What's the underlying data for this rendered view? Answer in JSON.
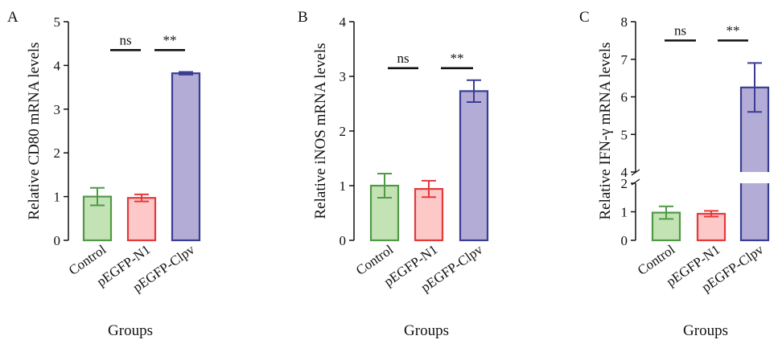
{
  "chart_data": [
    {
      "type": "bar",
      "panel": "A",
      "ylabel": "Relative CD80 mRNA levels",
      "xlabel": "Groups",
      "categories": [
        "Control",
        "pEGFP-N1",
        "pEGFP-Clpv"
      ],
      "values": [
        1.0,
        0.97,
        3.82
      ],
      "errors": [
        0.2,
        0.08,
        0.03
      ],
      "ylim": [
        0,
        5
      ],
      "yticks": [
        "0",
        "1",
        "2",
        "3",
        "4",
        "5"
      ],
      "significance": [
        {
          "label": "ns",
          "level": 4.35
        },
        {
          "label": "**",
          "level": 4.35
        }
      ]
    },
    {
      "type": "bar",
      "panel": "B",
      "ylabel": "Relative iNOS mRNA levels",
      "xlabel": "Groups",
      "categories": [
        "Control",
        "pEGFP-N1",
        "pEGFP-Clpv"
      ],
      "values": [
        1.0,
        0.94,
        2.73
      ],
      "errors": [
        0.22,
        0.15,
        0.2
      ],
      "ylim": [
        0,
        4
      ],
      "yticks": [
        "0",
        "1",
        "2",
        "3",
        "4"
      ],
      "significance": [
        {
          "label": "ns",
          "level": 3.15
        },
        {
          "label": "**",
          "level": 3.15
        }
      ]
    },
    {
      "type": "bar",
      "panel": "C",
      "ylabel": "Relative IFN-γ mRNA levels",
      "xlabel": "Groups",
      "categories": [
        "Control",
        "pEGFP-N1",
        "pEGFP-Clpv"
      ],
      "values": [
        0.97,
        0.93,
        6.25
      ],
      "errors": [
        0.22,
        0.1,
        0.65
      ],
      "axis_break": [
        2,
        4
      ],
      "ylim": [
        0,
        8
      ],
      "yticks": [
        "0",
        "1",
        "2",
        "4",
        "5",
        "6",
        "7",
        "8"
      ],
      "significance": [
        {
          "label": "ns",
          "level": 7.5
        },
        {
          "label": "**",
          "level": 7.5
        }
      ]
    }
  ],
  "colors": {
    "control": {
      "fill": "#c3e3b5",
      "stroke": "#4e9a45"
    },
    "n1": {
      "fill": "#fcc8c8",
      "stroke": "#e5393a"
    },
    "clpv": {
      "fill": "#b3acd6",
      "stroke": "#3a3d94"
    },
    "axis": "#111111"
  }
}
